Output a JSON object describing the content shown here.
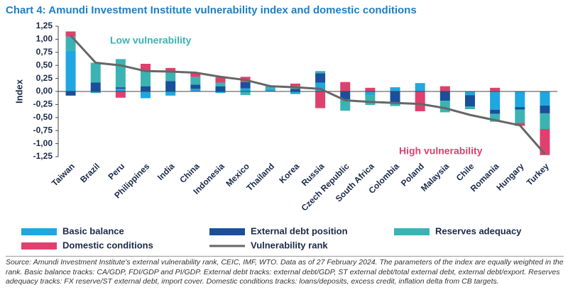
{
  "chart_data": {
    "type": "bar",
    "title": "Chart 4: Amundi Investment Institute vulnerability index and domestic conditions",
    "ylabel": "Index",
    "annotations": [
      "Low vulnerability",
      "High vulnerability"
    ],
    "categories": [
      "Taiwan",
      "Brazil",
      "Peru",
      "Philippines",
      "India",
      "China",
      "Indonesia",
      "Mexico",
      "Thailand",
      "Korea",
      "Russia",
      "Czech Republic",
      "South Africa",
      "Colombia",
      "Poland",
      "Malaysia",
      "Chile",
      "Romania",
      "Hungary",
      "Turkey"
    ],
    "series": [
      {
        "name": "Basic balance",
        "color": "#1ea7e1",
        "values": [
          0.78,
          -0.03,
          0.05,
          -0.13,
          -0.08,
          0.05,
          -0.03,
          0.06,
          0.05,
          -0.05,
          0.17,
          0,
          -0.08,
          0.08,
          0.16,
          0,
          -0.07,
          -0.35,
          -0.3,
          -0.27
        ]
      },
      {
        "name": "External debt position",
        "color": "#1a4f9c",
        "values": [
          -0.08,
          0.17,
          0.03,
          0.1,
          0.2,
          0.08,
          0.1,
          0.12,
          0,
          0.05,
          0.18,
          -0.15,
          0,
          -0.22,
          0,
          -0.18,
          -0.22,
          -0.08,
          -0.05,
          -0.15
        ]
      },
      {
        "name": "Reserves adequacy",
        "color": "#3bb3b3",
        "values": [
          0.27,
          0.38,
          0.54,
          0.28,
          0.17,
          0.15,
          0.07,
          -0.07,
          0.05,
          0.05,
          0.04,
          -0.22,
          -0.18,
          -0.06,
          0,
          -0.22,
          -0.05,
          -0.15,
          -0.25,
          -0.3
        ]
      },
      {
        "name": "Domestic conditions",
        "color": "#e0406e",
        "values": [
          0.1,
          0,
          -0.12,
          0.15,
          0.08,
          0.08,
          0.1,
          0.1,
          0,
          0.05,
          -0.32,
          0.18,
          0.07,
          0,
          -0.38,
          0.1,
          0,
          0.07,
          -0.06,
          -0.5
        ]
      }
    ],
    "line": {
      "name": "Vulnerability rank",
      "color": "#666666",
      "values": [
        1.07,
        0.55,
        0.5,
        0.39,
        0.38,
        0.36,
        0.28,
        0.22,
        0.1,
        0.08,
        0.05,
        -0.17,
        -0.2,
        -0.22,
        -0.24,
        -0.32,
        -0.45,
        -0.55,
        -0.65,
        -1.2
      ]
    },
    "ylim": [
      -1.25,
      1.25
    ],
    "yticks": [
      {
        "value": 1.25,
        "label": "1,25"
      },
      {
        "value": 1,
        "label": "1,00"
      },
      {
        "value": 0.75,
        "label": "0,75"
      },
      {
        "value": 0.5,
        "label": "0,50"
      },
      {
        "value": 0.25,
        "label": "0,25"
      },
      {
        "value": 0,
        "label": "0,00"
      },
      {
        "value": -0.25,
        "label": "-0,25"
      },
      {
        "value": -0.5,
        "label": "-0,50"
      },
      {
        "value": -0.75,
        "label": "-0,75"
      },
      {
        "value": -1,
        "label": "-1,00"
      },
      {
        "value": -1.25,
        "label": "-1,25"
      }
    ],
    "source": "Source: Amundi Investment Institute's external vulnerability rank, CEIC, IMF, WTO. Data as of 27 February 2024. The parameters of the index are equally weighted in the rank. Basic balance tracks: CA/GDP, FDI/GDP and PI/GDP. External debt tracks: external debt/GDP, ST external debt/total external debt, external debt/export. Reserves adequacy tracks: FX reserve/ST external debt, import cover. Domestic conditions tracks: loans/deposits, excess credit, inflation delta from CB targets."
  }
}
